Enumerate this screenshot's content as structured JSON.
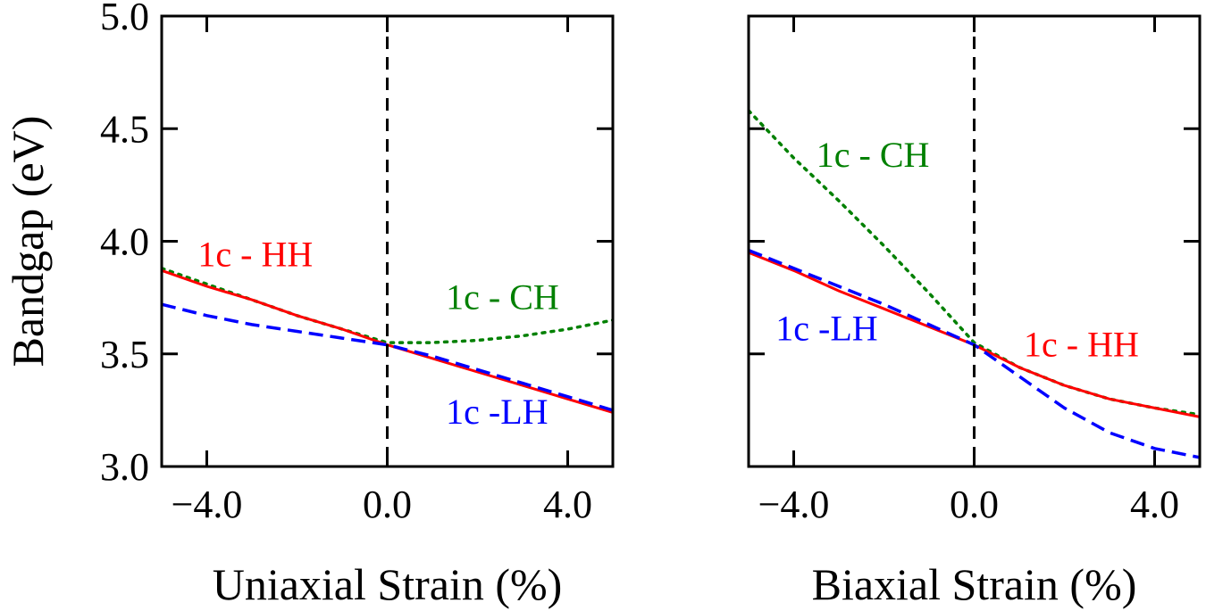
{
  "chart_data": [
    {
      "type": "line",
      "xlabel": "Uniaxial Strain (%)",
      "ylabel": "Bandgap (eV)",
      "xlim": [
        -5,
        5
      ],
      "ylim": [
        3.0,
        5.0
      ],
      "x_ticks": [
        -4.0,
        0.0,
        4.0
      ],
      "x_tick_labels": [
        "−4.0",
        "0.0",
        "4.0"
      ],
      "y_ticks": [
        3.0,
        3.5,
        4.0,
        4.5,
        5.0
      ],
      "y_tick_labels": [
        "3.0",
        "3.5",
        "4.0",
        "4.5",
        "5.0"
      ],
      "vline_x": 0,
      "series": [
        {
          "name": "1c - CH",
          "color": "#008000",
          "style": "dotted",
          "x": [
            -5,
            -4,
            -3,
            -2,
            -1,
            0,
            1,
            2,
            3,
            4,
            5
          ],
          "y": [
            3.88,
            3.81,
            3.74,
            3.67,
            3.61,
            3.55,
            3.55,
            3.56,
            3.58,
            3.61,
            3.65
          ]
        },
        {
          "name": "1c - HH",
          "color": "#ff0000",
          "style": "solid",
          "x": [
            -5,
            -4,
            -3,
            -2,
            -1,
            0,
            1,
            2,
            3,
            4,
            5
          ],
          "y": [
            3.87,
            3.8,
            3.74,
            3.67,
            3.61,
            3.54,
            3.48,
            3.42,
            3.36,
            3.3,
            3.24
          ]
        },
        {
          "name": "1c -LH",
          "color": "#0000ff",
          "style": "dashed",
          "x": [
            -5,
            -4,
            -3,
            -2,
            -1,
            0,
            1,
            2,
            3,
            4,
            5
          ],
          "y": [
            3.72,
            3.67,
            3.63,
            3.6,
            3.57,
            3.54,
            3.49,
            3.43,
            3.37,
            3.31,
            3.25
          ]
        }
      ],
      "annotations": [
        {
          "text": "1c - HH",
          "color": "#ff0000",
          "x": -4.2,
          "y": 3.89
        },
        {
          "text": "1c - CH",
          "color": "#008000",
          "x": 1.3,
          "y": 3.7
        },
        {
          "text": "1c -LH",
          "color": "#0000ff",
          "x": 1.3,
          "y": 3.19
        }
      ]
    },
    {
      "type": "line",
      "xlabel": "Biaxial Strain (%)",
      "xlim": [
        -5,
        5
      ],
      "ylim": [
        3.0,
        5.0
      ],
      "x_ticks": [
        -4.0,
        0.0,
        4.0
      ],
      "x_tick_labels": [
        "−4.0",
        "0.0",
        "4.0"
      ],
      "y_ticks": [
        3.0,
        3.5,
        4.0,
        4.5,
        5.0
      ],
      "vline_x": 0,
      "series": [
        {
          "name": "1c - CH",
          "color": "#008000",
          "style": "dotted",
          "x": [
            -5,
            -4,
            -3,
            -2,
            -1,
            0,
            1,
            2,
            3,
            4,
            5
          ],
          "y": [
            4.58,
            4.37,
            4.18,
            3.98,
            3.77,
            3.55,
            3.44,
            3.36,
            3.3,
            3.26,
            3.23
          ]
        },
        {
          "name": "1c - HH",
          "color": "#ff0000",
          "style": "solid",
          "x": [
            -5,
            -4,
            -3,
            -2,
            -1,
            0,
            1,
            2,
            3,
            4,
            5
          ],
          "y": [
            3.95,
            3.87,
            3.78,
            3.7,
            3.62,
            3.54,
            3.44,
            3.36,
            3.3,
            3.26,
            3.22
          ]
        },
        {
          "name": "1c -LH",
          "color": "#0000ff",
          "style": "dashed",
          "x": [
            -5,
            -4,
            -3,
            -2,
            -1,
            0,
            1,
            2,
            3,
            4,
            5
          ],
          "y": [
            3.96,
            3.88,
            3.8,
            3.72,
            3.63,
            3.54,
            3.4,
            3.26,
            3.15,
            3.08,
            3.04
          ]
        }
      ],
      "annotations": [
        {
          "text": "1c - CH",
          "color": "#008000",
          "x": -3.5,
          "y": 4.33
        },
        {
          "text": "1c -LH",
          "color": "#0000ff",
          "x": -4.4,
          "y": 3.56
        },
        {
          "text": "1c - HH",
          "color": "#ff0000",
          "x": 1.1,
          "y": 3.49
        }
      ]
    }
  ]
}
